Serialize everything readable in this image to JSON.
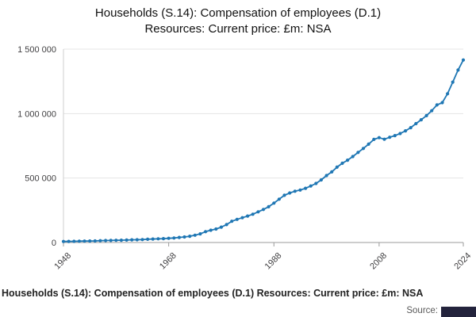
{
  "title": {
    "line1": "Households (S.14): Compensation of employees (D.1)",
    "line2": "Resources: Current price: £m: NSA"
  },
  "footer": {
    "caption": "Households (S.14): Compensation of employees (D.1) Resources: Current price: £m: NSA",
    "source_label": "Source:"
  },
  "chart_data": {
    "type": "line",
    "title": "Households (S.14): Compensation of employees (D.1) Resources: Current price: £m: NSA",
    "xlabel": "",
    "ylabel": "",
    "xlim": [
      1948,
      2024
    ],
    "ylim": [
      0,
      1500000
    ],
    "x_ticks": [
      1948,
      1968,
      1988,
      2008,
      2024
    ],
    "y_ticks": [
      0,
      500000,
      1000000,
      1500000
    ],
    "grid": true,
    "legend": "none",
    "line_color": "#1f77b4",
    "marker": "circle",
    "series": [
      {
        "name": "Households (S.14): Compensation of employees (D.1) Resources: Current price: £m: NSA",
        "x": [
          1948,
          1949,
          1950,
          1951,
          1952,
          1953,
          1954,
          1955,
          1956,
          1957,
          1958,
          1959,
          1960,
          1961,
          1962,
          1963,
          1964,
          1965,
          1966,
          1967,
          1968,
          1969,
          1970,
          1971,
          1972,
          1973,
          1974,
          1975,
          1976,
          1977,
          1978,
          1979,
          1980,
          1981,
          1982,
          1983,
          1984,
          1985,
          1986,
          1987,
          1988,
          1989,
          1990,
          1991,
          1992,
          1993,
          1994,
          1995,
          1996,
          1997,
          1998,
          1999,
          2000,
          2001,
          2002,
          2003,
          2004,
          2005,
          2006,
          2007,
          2008,
          2009,
          2010,
          2011,
          2012,
          2013,
          2014,
          2015,
          2016,
          2017,
          2018,
          2019,
          2020,
          2021,
          2022,
          2023,
          2024
        ],
        "values": [
          8000,
          8600,
          9200,
          10200,
          11000,
          11800,
          12600,
          13900,
          15200,
          16200,
          17000,
          17800,
          19100,
          20600,
          21800,
          23000,
          25000,
          27100,
          29000,
          30400,
          32600,
          35200,
          39300,
          43300,
          48600,
          56400,
          66800,
          84500,
          95400,
          104800,
          119000,
          139000,
          164500,
          179500,
          192500,
          205600,
          219500,
          238000,
          256500,
          277000,
          305500,
          336500,
          366500,
          384500,
          397500,
          407000,
          420500,
          438500,
          458000,
          485500,
          519500,
          547500,
          584500,
          614500,
          638500,
          667000,
          699000,
          730000,
          763000,
          799500,
          813500,
          801000,
          816500,
          829500,
          845000,
          866000,
          891000,
          922000,
          952500,
          984500,
          1022500,
          1067000,
          1085000,
          1154000,
          1244000,
          1338000,
          1416000
        ]
      }
    ]
  }
}
